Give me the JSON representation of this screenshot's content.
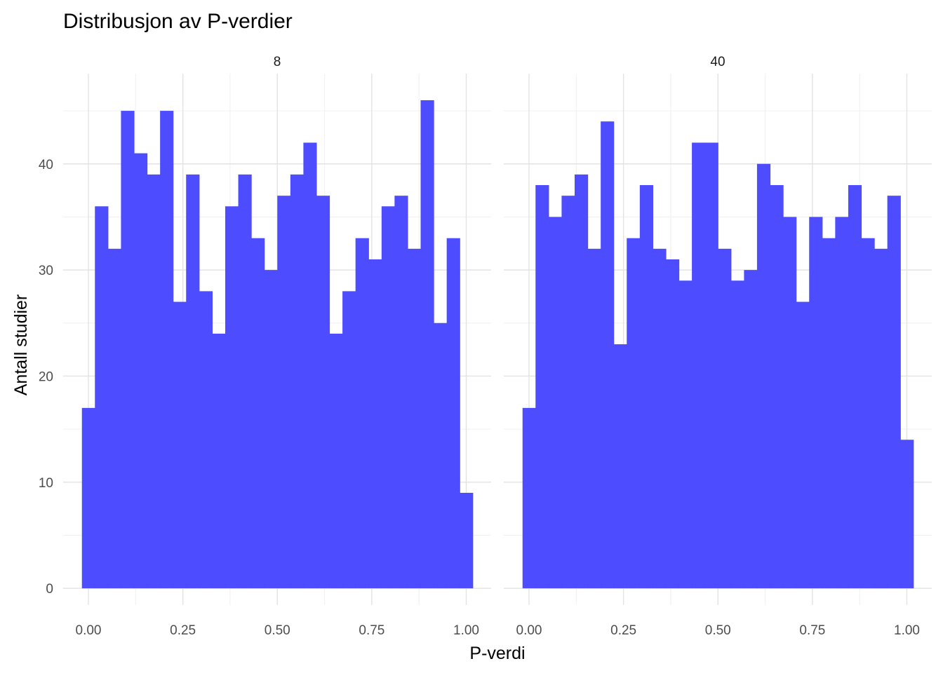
{
  "chart_data": {
    "type": "histogram",
    "title": "Distribusjon av P-verdier",
    "xlabel": "P-verdi",
    "ylabel": "Antall studier",
    "xlim": [
      -0.05,
      1.05
    ],
    "ylim": [
      0,
      46
    ],
    "x_ticks": [
      "0.00",
      "0.25",
      "0.50",
      "0.75",
      "1.00"
    ],
    "y_ticks": [
      "0",
      "10",
      "20",
      "30",
      "40"
    ],
    "grid": true,
    "fill_color": "#4D4DFF",
    "bins": [
      -0.0172,
      0.0172,
      0.0517,
      0.0862,
      0.1207,
      0.1552,
      0.1897,
      0.2241,
      0.2586,
      0.2931,
      0.3276,
      0.3621,
      0.3966,
      0.431,
      0.4655,
      0.5,
      0.5345,
      0.569,
      0.6034,
      0.6379,
      0.6724,
      0.7069,
      0.7414,
      0.7759,
      0.8103,
      0.8448,
      0.8793,
      0.9138,
      0.9483,
      0.9828,
      1.0172
    ],
    "panels": [
      {
        "label": "8",
        "values": [
          17,
          36,
          32,
          45,
          41,
          39,
          45,
          27,
          39,
          28,
          24,
          36,
          39,
          33,
          30,
          37,
          39,
          42,
          37,
          24,
          28,
          33,
          31,
          36,
          37,
          32,
          46,
          25,
          33,
          9
        ]
      },
      {
        "label": "40",
        "values": [
          17,
          38,
          35,
          37,
          39,
          32,
          44,
          23,
          33,
          38,
          32,
          31,
          29,
          42,
          42,
          32,
          29,
          30,
          40,
          38,
          35,
          27,
          35,
          33,
          35,
          38,
          33,
          32,
          37,
          14
        ]
      }
    ]
  }
}
